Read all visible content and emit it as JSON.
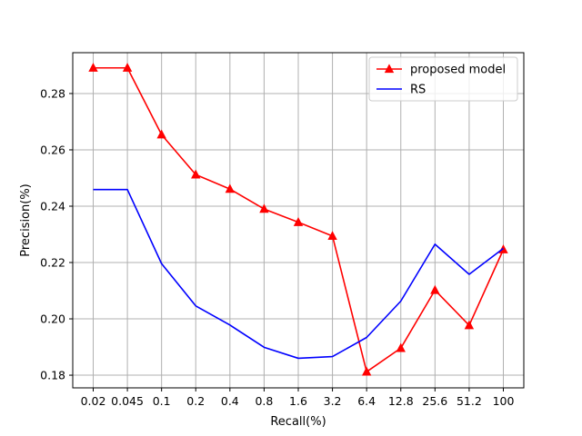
{
  "chart_data": {
    "type": "line",
    "title": "",
    "xlabel": "Recall(%)",
    "ylabel": "Precision(%)",
    "categories": [
      "0.02",
      "0.045",
      "0.1",
      "0.2",
      "0.4",
      "0.8",
      "1.6",
      "3.2",
      "6.4",
      "12.8",
      "25.6",
      "51.2",
      "100"
    ],
    "ylim": [
      0.1755,
      0.2945
    ],
    "yticks": [
      "0.18",
      "0.20",
      "0.22",
      "0.24",
      "0.26",
      "0.28"
    ],
    "grid": true,
    "legend_position": "top-right",
    "series": [
      {
        "name": "proposed model",
        "color": "#ff0000",
        "marker": "triangle-up",
        "values": [
          0.2891,
          0.2891,
          0.2654,
          0.2512,
          0.2461,
          0.239,
          0.2343,
          0.2294,
          0.1812,
          0.1896,
          0.2102,
          0.1977,
          0.2246
        ]
      },
      {
        "name": "RS",
        "color": "#0000ff",
        "marker": "none",
        "values": [
          0.2459,
          0.2459,
          0.2196,
          0.2046,
          0.1978,
          0.1899,
          0.186,
          0.1866,
          0.1934,
          0.2063,
          0.2265,
          0.2158,
          0.225
        ]
      }
    ]
  }
}
